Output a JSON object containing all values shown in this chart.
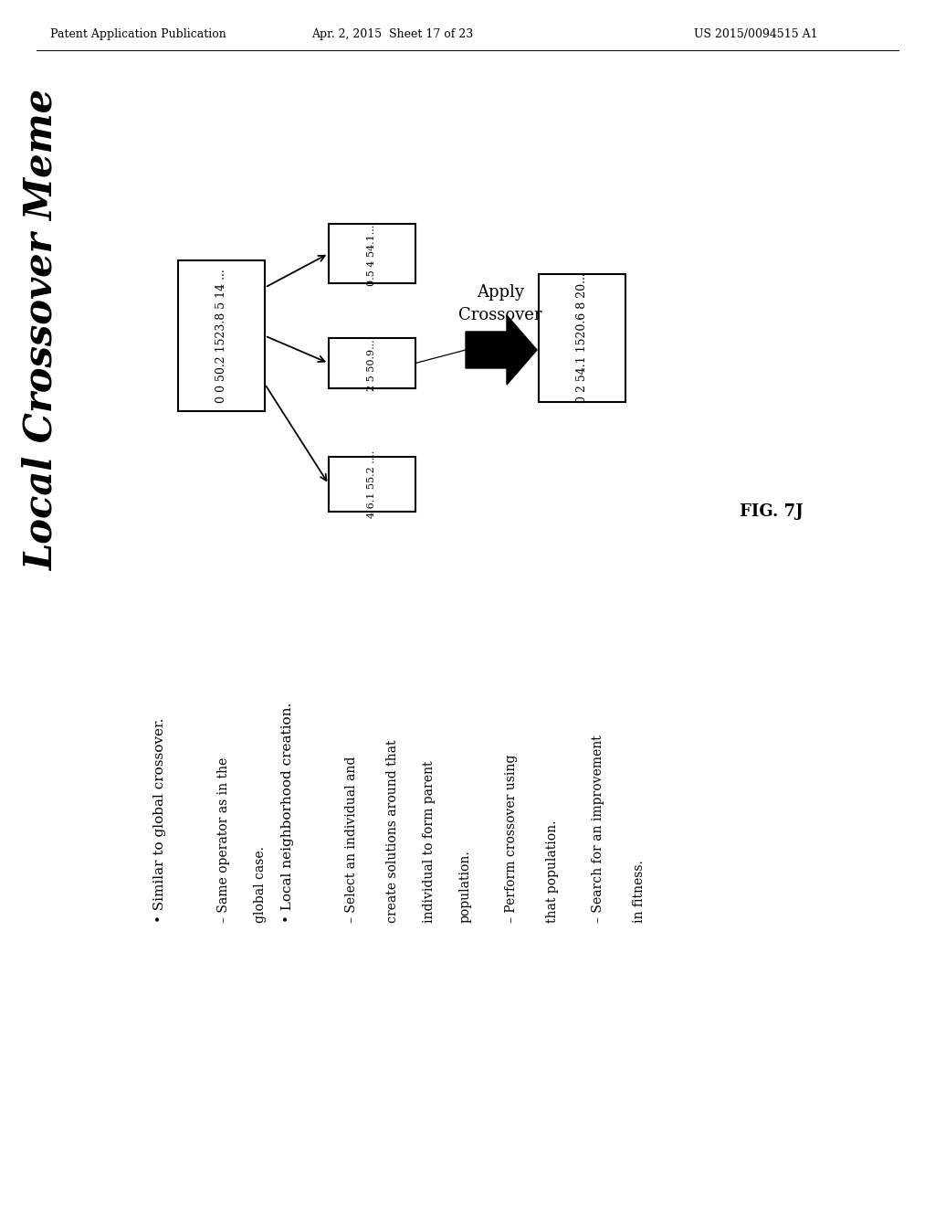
{
  "bg_color": "#ffffff",
  "header_left": "Patent Application Publication",
  "header_mid": "Apr. 2, 2015  Sheet 17 of 23",
  "header_right": "US 2015/0094515 A1",
  "title": "Local Crossover Meme",
  "fig_label": "FIG. 7J",
  "box_source": "0 0 50.2 1523.8 5 14 ...",
  "box_top": "0.5 4 54.1....",
  "box_mid": "2 5 50.9....",
  "box_bot": "4 6.1 55.2 ....",
  "box_result": "0 2 54.1 1520.6 8 20...",
  "apply_line1": "Apply",
  "apply_line2": "Crossover",
  "bullet1": "• Similar to global crossover.",
  "bullet1a": "– Same operator as in the",
  "bullet1b": "global case.",
  "bullet2": "• Local neighborhood creation.",
  "bullet2a": "– Select an individual and",
  "bullet2b": "create solutions around that",
  "bullet2c": "individual to form parent",
  "bullet2d": "population.",
  "bullet3a": "– Perform crossover using",
  "bullet3b": "that population.",
  "bullet4a": "– Search for an improvement",
  "bullet4b": "in fitness."
}
